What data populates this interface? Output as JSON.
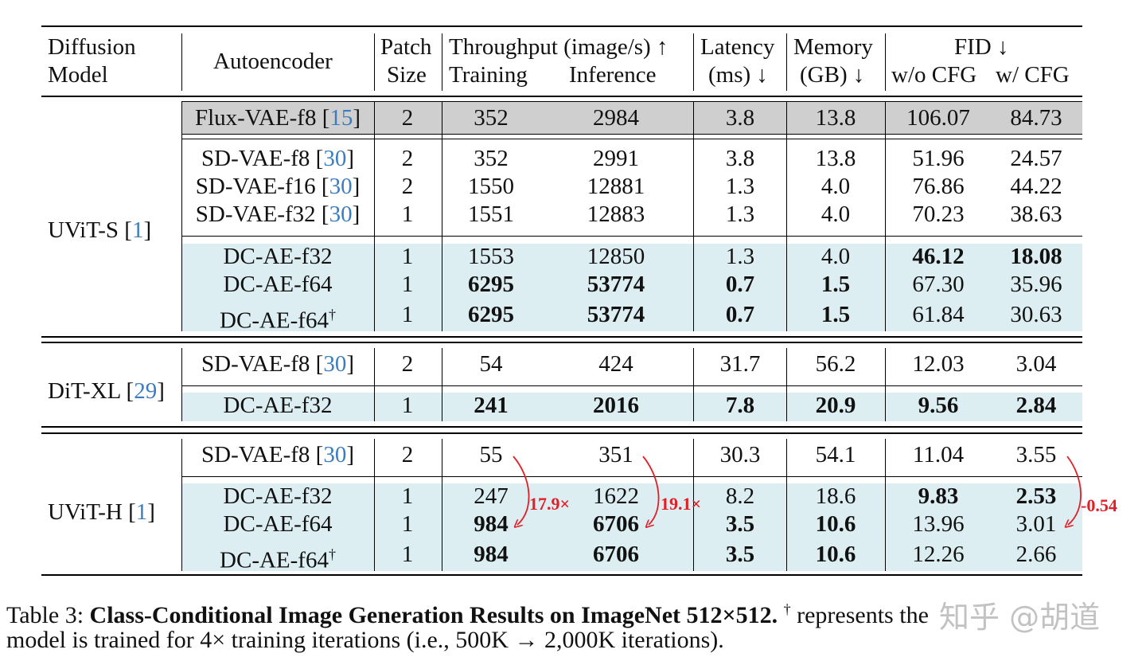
{
  "header": {
    "diffusion_model": [
      "Diffusion",
      "Model"
    ],
    "autoencoder": "Autoencoder",
    "patch_size": [
      "Patch",
      "Size"
    ],
    "throughput": "Throughput (image/s) ↑",
    "training": "Training",
    "inference": "Inference",
    "latency": [
      "Latency",
      "(ms) ↓"
    ],
    "memory": [
      "Memory",
      "(GB) ↓"
    ],
    "fid": "FID ↓",
    "fid_wo": "w/o CFG",
    "fid_w": "w/ CFG"
  },
  "groups": [
    {
      "model": "UViT-S",
      "ref": "1"
    },
    {
      "model": "DiT-XL",
      "ref": "29"
    },
    {
      "model": "UViT-H",
      "ref": "1"
    }
  ],
  "rows": [
    {
      "ae": "Flux-VAE-f8",
      "ref": "15",
      "patch": "2",
      "train": "352",
      "infer": "2984",
      "lat": "3.8",
      "mem": "13.8",
      "fid_wo": "106.07",
      "fid_w": "84.73"
    },
    {
      "ae": "SD-VAE-f8",
      "ref": "30",
      "patch": "2",
      "train": "352",
      "infer": "2991",
      "lat": "3.8",
      "mem": "13.8",
      "fid_wo": "51.96",
      "fid_w": "24.57"
    },
    {
      "ae": "SD-VAE-f16",
      "ref": "30",
      "patch": "2",
      "train": "1550",
      "infer": "12881",
      "lat": "1.3",
      "mem": "4.0",
      "fid_wo": "76.86",
      "fid_w": "44.22"
    },
    {
      "ae": "SD-VAE-f32",
      "ref": "30",
      "patch": "1",
      "train": "1551",
      "infer": "12883",
      "lat": "1.3",
      "mem": "4.0",
      "fid_wo": "70.23",
      "fid_w": "38.63"
    },
    {
      "ae": "DC-AE-f32",
      "patch": "1",
      "train": "1553",
      "infer": "12850",
      "lat": "1.3",
      "mem": "4.0",
      "fid_wo": "46.12",
      "fid_w": "18.08"
    },
    {
      "ae": "DC-AE-f64",
      "patch": "1",
      "train": "6295",
      "infer": "53774",
      "lat": "0.7",
      "mem": "1.5",
      "fid_wo": "67.30",
      "fid_w": "35.96"
    },
    {
      "ae": "DC-AE-f64",
      "sup": "†",
      "patch": "1",
      "train": "6295",
      "infer": "53774",
      "lat": "0.7",
      "mem": "1.5",
      "fid_wo": "61.84",
      "fid_w": "30.63"
    },
    {
      "ae": "SD-VAE-f8",
      "ref": "30",
      "patch": "2",
      "train": "54",
      "infer": "424",
      "lat": "31.7",
      "mem": "56.2",
      "fid_wo": "12.03",
      "fid_w": "3.04"
    },
    {
      "ae": "DC-AE-f32",
      "patch": "1",
      "train": "241",
      "infer": "2016",
      "lat": "7.8",
      "mem": "20.9",
      "fid_wo": "9.56",
      "fid_w": "2.84"
    },
    {
      "ae": "SD-VAE-f8",
      "ref": "30",
      "patch": "2",
      "train": "55",
      "infer": "351",
      "lat": "30.3",
      "mem": "54.1",
      "fid_wo": "11.04",
      "fid_w": "3.55"
    },
    {
      "ae": "DC-AE-f32",
      "patch": "1",
      "train": "247",
      "infer": "1622",
      "lat": "8.2",
      "mem": "18.6",
      "fid_wo": "9.83",
      "fid_w": "2.53"
    },
    {
      "ae": "DC-AE-f64",
      "patch": "1",
      "train": "984",
      "infer": "6706",
      "lat": "3.5",
      "mem": "10.6",
      "fid_wo": "13.96",
      "fid_w": "3.01"
    },
    {
      "ae": "DC-AE-f64",
      "sup": "†",
      "patch": "1",
      "train": "984",
      "infer": "6706",
      "lat": "3.5",
      "mem": "10.6",
      "fid_wo": "12.26",
      "fid_w": "2.66"
    }
  ],
  "annotations": {
    "train_speedup": "17.9×",
    "infer_speedup": "19.1×",
    "fid_delta": "-0.54"
  },
  "caption": {
    "label": "Table 3:",
    "title": "Class-Conditional Image Generation Results on ImageNet 512×512.",
    "dagger": "†",
    "line1_rest": "represents the",
    "line2": "model is trained for 4× training iterations (i.e., 500K → 2,000K iterations)."
  },
  "watermark": "知乎 @胡道",
  "colors": {
    "gray_band": "#cfcfcf",
    "blue_band": "#ddeef3",
    "ref": "#3b7dbf",
    "annotation": "#e01f26"
  }
}
